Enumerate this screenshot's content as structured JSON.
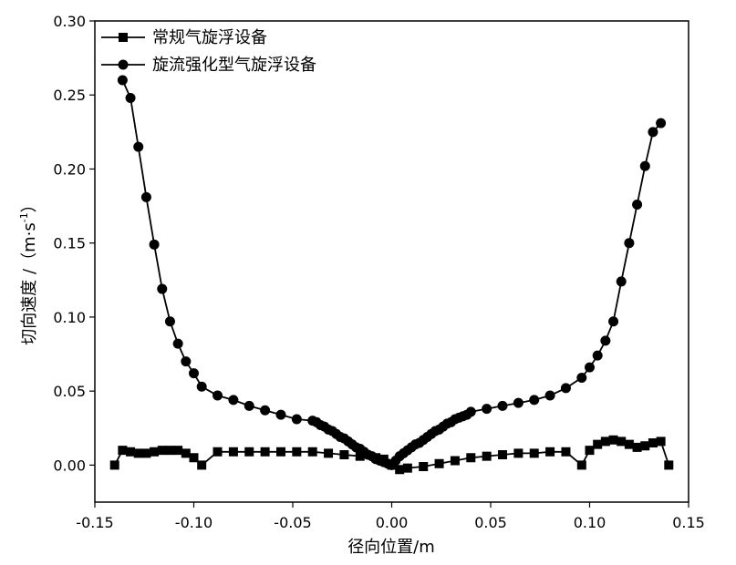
{
  "chart_data": {
    "type": "line",
    "xlabel": "径向位置/m",
    "ylabel_main": "切向速度 /（m·s",
    "ylabel_sup": "-1",
    "ylabel_close": "）",
    "xlim": [
      -0.15,
      0.15
    ],
    "ylim": [
      -0.025,
      0.3
    ],
    "xticks": [
      -0.15,
      -0.1,
      -0.05,
      0.0,
      0.05,
      0.1,
      0.15
    ],
    "xtick_labels": [
      "-0.15",
      "-0.10",
      "-0.05",
      "0.00",
      "0.05",
      "0.10",
      "0.15"
    ],
    "yticks": [
      0.0,
      0.05,
      0.1,
      0.15,
      0.2,
      0.25,
      0.3
    ],
    "ytick_labels": [
      "0.00",
      "0.05",
      "0.10",
      "0.15",
      "0.20",
      "0.25",
      "0.30"
    ],
    "legend_position": "top-left",
    "series": [
      {
        "name": "常规气旋浮设备",
        "marker": "square",
        "color": "#000000",
        "x": [
          -0.14,
          -0.136,
          -0.132,
          -0.128,
          -0.124,
          -0.12,
          -0.116,
          -0.112,
          -0.108,
          -0.104,
          -0.1,
          -0.096,
          -0.088,
          -0.08,
          -0.072,
          -0.064,
          -0.056,
          -0.048,
          -0.04,
          -0.032,
          -0.024,
          -0.016,
          -0.008,
          -0.004,
          0.0,
          0.004,
          0.008,
          0.016,
          0.024,
          0.032,
          0.04,
          0.048,
          0.056,
          0.064,
          0.072,
          0.08,
          0.088,
          0.096,
          0.1,
          0.104,
          0.108,
          0.112,
          0.116,
          0.12,
          0.124,
          0.128,
          0.132,
          0.136,
          0.14
        ],
        "y": [
          0.0,
          0.01,
          0.009,
          0.008,
          0.008,
          0.009,
          0.01,
          0.01,
          0.01,
          0.008,
          0.005,
          0.0,
          0.009,
          0.009,
          0.009,
          0.009,
          0.009,
          0.009,
          0.009,
          0.008,
          0.007,
          0.006,
          0.005,
          0.004,
          0.0,
          -0.003,
          -0.002,
          -0.001,
          0.001,
          0.003,
          0.005,
          0.006,
          0.007,
          0.008,
          0.008,
          0.009,
          0.009,
          0.0,
          0.01,
          0.014,
          0.016,
          0.017,
          0.016,
          0.014,
          0.012,
          0.013,
          0.015,
          0.016,
          0.0
        ]
      },
      {
        "name": "旋流强化型气旋浮设备",
        "marker": "circle",
        "color": "#000000",
        "x": [
          -0.136,
          -0.132,
          -0.128,
          -0.124,
          -0.12,
          -0.116,
          -0.112,
          -0.108,
          -0.104,
          -0.1,
          -0.096,
          -0.088,
          -0.08,
          -0.072,
          -0.064,
          -0.056,
          -0.048,
          -0.04,
          -0.038,
          -0.036,
          -0.034,
          -0.032,
          -0.03,
          -0.028,
          -0.026,
          -0.024,
          -0.022,
          -0.02,
          -0.018,
          -0.016,
          -0.014,
          -0.012,
          -0.01,
          -0.008,
          -0.006,
          -0.004,
          -0.002,
          0.0,
          0.002,
          0.004,
          0.006,
          0.008,
          0.01,
          0.012,
          0.014,
          0.016,
          0.018,
          0.02,
          0.022,
          0.024,
          0.026,
          0.028,
          0.03,
          0.032,
          0.034,
          0.036,
          0.038,
          0.04,
          0.048,
          0.056,
          0.064,
          0.072,
          0.08,
          0.088,
          0.096,
          0.1,
          0.104,
          0.108,
          0.112,
          0.116,
          0.12,
          0.124,
          0.128,
          0.132,
          0.136
        ],
        "y": [
          0.26,
          0.248,
          0.215,
          0.181,
          0.149,
          0.119,
          0.097,
          0.082,
          0.07,
          0.062,
          0.053,
          0.047,
          0.044,
          0.04,
          0.037,
          0.034,
          0.031,
          0.03,
          0.029,
          0.027,
          0.026,
          0.024,
          0.023,
          0.021,
          0.019,
          0.018,
          0.016,
          0.014,
          0.012,
          0.011,
          0.009,
          0.007,
          0.006,
          0.004,
          0.003,
          0.002,
          0.001,
          0.0,
          0.003,
          0.006,
          0.008,
          0.01,
          0.012,
          0.014,
          0.015,
          0.017,
          0.019,
          0.021,
          0.023,
          0.024,
          0.026,
          0.028,
          0.029,
          0.031,
          0.032,
          0.033,
          0.034,
          0.036,
          0.038,
          0.04,
          0.042,
          0.044,
          0.047,
          0.052,
          0.059,
          0.066,
          0.074,
          0.084,
          0.097,
          0.124,
          0.15,
          0.176,
          0.202,
          0.225,
          0.231
        ]
      }
    ]
  }
}
